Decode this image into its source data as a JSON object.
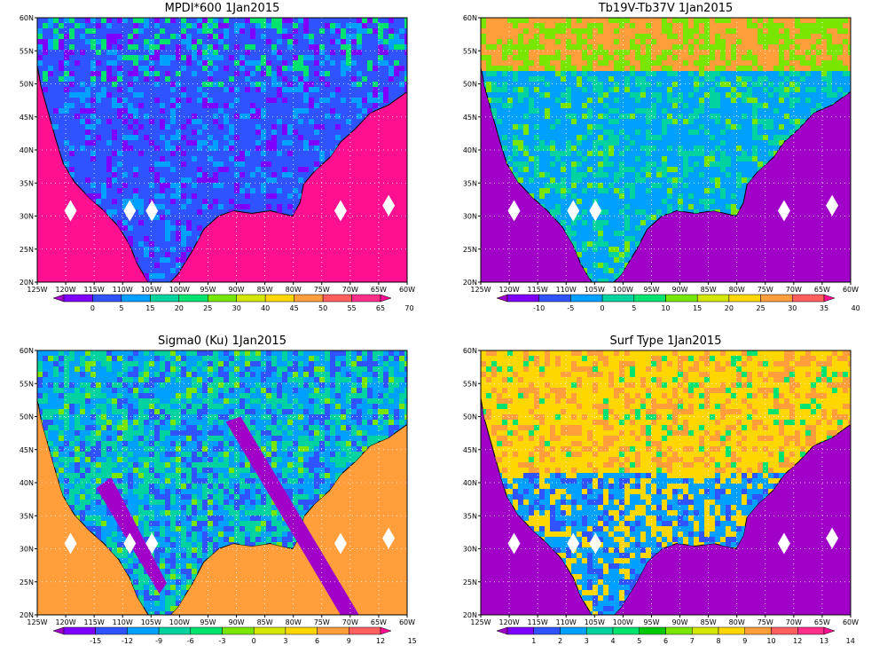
{
  "panels": [
    {
      "title": "MPDI*600  1Jan2015",
      "colorbar_labels": [
        "0",
        "5",
        "15",
        "20",
        "25",
        "30",
        "40",
        "45",
        "50",
        "55",
        "65",
        "70"
      ],
      "colorbar_colors": [
        "#a000c8",
        "#7d00ff",
        "#2f54ff",
        "#00a0ff",
        "#00d2a0",
        "#00e36e",
        "#78e600",
        "#d2e600",
        "#ffd700",
        "#ff9e3a",
        "#ff5f5f",
        "#ff2f8a",
        "#ff1090"
      ]
    },
    {
      "title": "Tb19V-Tb37V  1Jan2015",
      "colorbar_labels": [
        "-10",
        "-5",
        "0",
        "5",
        "10",
        "15",
        "20",
        "25",
        "30",
        "35",
        "40"
      ],
      "colorbar_colors": [
        "#a000c8",
        "#7d00ff",
        "#2f54ff",
        "#00a0ff",
        "#00d2a0",
        "#00e36e",
        "#78e600",
        "#d2e600",
        "#ffd700",
        "#ff9e3a",
        "#ff5f5f",
        "#ff1090"
      ]
    },
    {
      "title": "Sigma0 (Ku)  1Jan2015",
      "colorbar_labels": [
        "-15",
        "-12",
        "-9",
        "-6",
        "-3",
        "0",
        "3",
        "6",
        "9",
        "12",
        "15"
      ],
      "colorbar_colors": [
        "#a000c8",
        "#7d00ff",
        "#2f54ff",
        "#00a0ff",
        "#00d2a0",
        "#00e36e",
        "#78e600",
        "#d2e600",
        "#ffd700",
        "#ff9e3a",
        "#ff5f5f",
        "#ff1090"
      ]
    },
    {
      "title": "Surf Type  1Jan2015",
      "colorbar_labels": [
        "1",
        "2",
        "3",
        "4",
        "5",
        "6",
        "7",
        "8",
        "9",
        "10",
        "12",
        "13",
        "14"
      ],
      "colorbar_colors": [
        "#a000c8",
        "#7d00ff",
        "#2f54ff",
        "#00a0ff",
        "#00d2a0",
        "#00e36e",
        "#00c800",
        "#78e600",
        "#d2e600",
        "#ffd700",
        "#ff9e3a",
        "#ff5f5f",
        "#ff2f8a",
        "#ff1090"
      ]
    }
  ],
  "axis": {
    "lat_labels": [
      "20N",
      "25N",
      "30N",
      "35N",
      "40N",
      "45N",
      "50N",
      "55N",
      "60N"
    ],
    "lon_labels": [
      "125W",
      "120W",
      "115W",
      "110W",
      "105W",
      "100W",
      "95W",
      "90W",
      "85W",
      "80W",
      "75W",
      "70W",
      "65W",
      "60W"
    ]
  }
}
